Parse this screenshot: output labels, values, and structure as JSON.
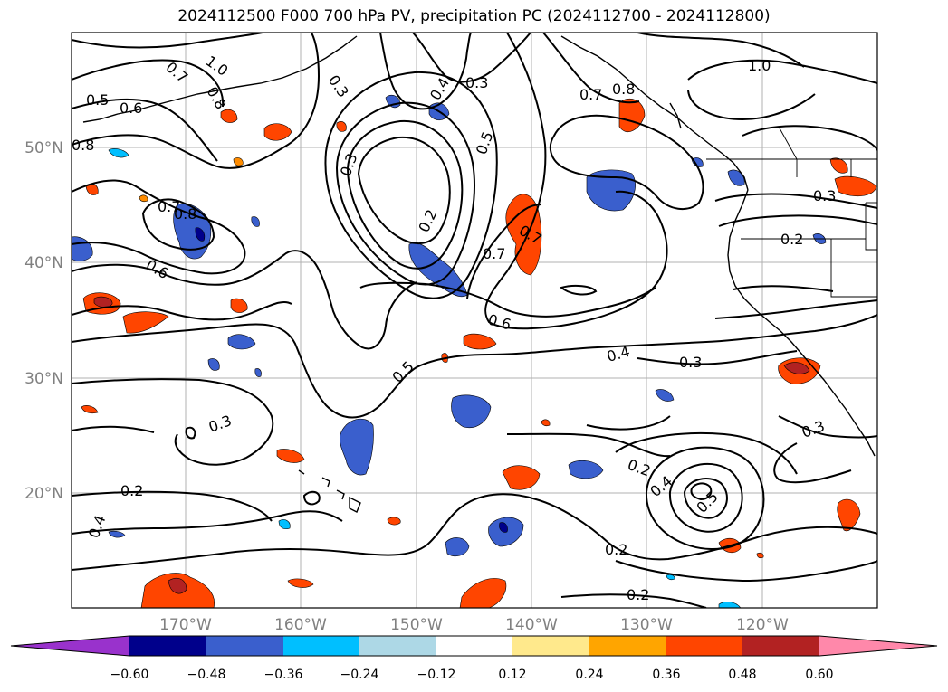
{
  "title": "2024112500 F000 700 hPa PV, precipitation PC (2024112700 - 2024112800)",
  "map": {
    "lat_labels": [
      "50°N",
      "40°N",
      "30°N",
      "20°N"
    ],
    "lon_labels": [
      "170°W",
      "160°W",
      "150°W",
      "140°W",
      "130°W",
      "120°W"
    ],
    "contour_labels": [
      "0.7",
      "1.0",
      "0.8",
      "0.5",
      "0.6",
      "0.8",
      "0.3",
      "0.4",
      "0.3",
      "0.5",
      "1.0",
      "0.7",
      "0.8",
      "0.7",
      "0.8",
      "0.6",
      "0.2",
      "0.7",
      "0.7",
      "0.6",
      "0.5",
      "0.4",
      "0.3",
      "0.3",
      "0.2",
      "0.3",
      "0.2",
      "0.3",
      "0.2",
      "0.4",
      "0.5",
      "0.4",
      "0.2",
      "0.2",
      "0.3"
    ]
  },
  "colorbar": {
    "tick_labels": [
      "−0.60",
      "−0.48",
      "−0.36",
      "−0.24",
      "−0.12",
      "0.12",
      "0.24",
      "0.36",
      "0.48",
      "0.60"
    ],
    "colors": [
      "#9932cc",
      "#8a2be2",
      "#00008b",
      "#3a5fcd",
      "#00bfff",
      "#add8e6",
      "#ffffff",
      "#ffe98c",
      "#ffa500",
      "#ff4500",
      "#b22222",
      "#ff88aa"
    ]
  }
}
